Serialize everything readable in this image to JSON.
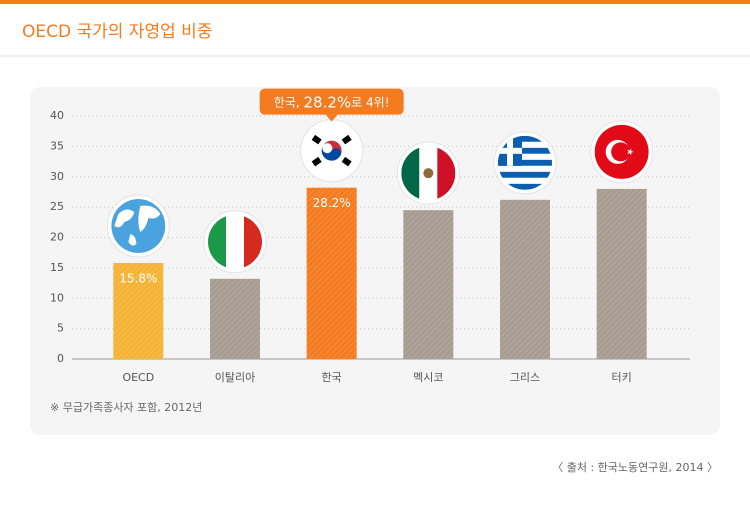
{
  "chart_data": {
    "type": "bar",
    "title": "OECD 국가의 자영업 비중",
    "categories": [
      "OECD",
      "이탈리아",
      "한국",
      "멕시코",
      "그리스",
      "터키"
    ],
    "values": [
      15.8,
      13.2,
      28.2,
      24.5,
      26.2,
      28.0
    ],
    "value_labels": [
      "15.8%",
      null,
      "28.2%",
      null,
      null,
      null
    ],
    "colors": [
      "#f5b335",
      "#a89c91",
      "#f47b20",
      "#a89c91",
      "#a89c91",
      "#a89c91"
    ],
    "ylim": [
      0,
      40
    ],
    "yticks": [
      0,
      5,
      10,
      15,
      20,
      25,
      30,
      35,
      40
    ],
    "grid": true,
    "annotation": [
      "한국, ",
      "28.2%",
      "로 4위!"
    ],
    "footnote": "※ 무급가족종사자 포함, 2012년",
    "source": "〈 출처 : 한국노동연구원, 2014 〉"
  }
}
